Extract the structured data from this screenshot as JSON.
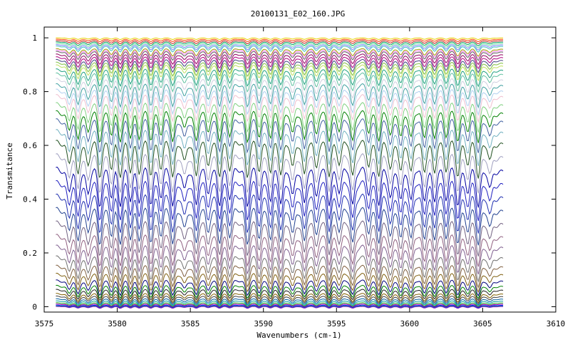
{
  "chart_data": {
    "type": "line",
    "title": "20100131_E02_160.JPG",
    "xlabel": "Wavenumbers (cm-1)",
    "ylabel": "Transmitance",
    "xlim": [
      3575,
      3610
    ],
    "ylim": [
      -0.02,
      1.04
    ],
    "x_ticks": [
      "3575",
      "3580",
      "3585",
      "3590",
      "3595",
      "3600",
      "3605",
      "3610"
    ],
    "y_ticks": [
      "0",
      "0.2",
      "0.4",
      "0.6",
      "0.8",
      "1"
    ],
    "grid": false,
    "legend": "none",
    "x_range_of_data": [
      3575.8,
      3606.4
    ],
    "absorption_lines_cm1": [
      3576.7,
      3577.3,
      3578.0,
      3578.8,
      3579.6,
      3580.2,
      3580.9,
      3581.5,
      3582.3,
      3583.0,
      3583.8,
      3584.6,
      3585.4,
      3586.2,
      3587.0,
      3587.7,
      3588.9,
      3589.7,
      3590.5,
      3591.2,
      3592.0,
      3592.8,
      3593.6,
      3594.5,
      3595.2,
      3596.1,
      3597.2,
      3597.9,
      3598.7,
      3599.4,
      3600.1,
      3601.0,
      3601.7,
      3602.5,
      3603.3,
      3604.0,
      3604.7,
      3605.5
    ],
    "series_baselines": [
      1.0,
      0.995,
      0.99,
      0.985,
      0.98,
      0.975,
      0.97,
      0.96,
      0.955,
      0.95,
      0.94,
      0.93,
      0.92,
      0.91,
      0.9,
      0.885,
      0.87,
      0.85,
      0.83,
      0.81,
      0.79,
      0.76,
      0.73,
      0.7,
      0.66,
      0.62,
      0.57,
      0.52,
      0.47,
      0.42,
      0.37,
      0.32,
      0.27,
      0.23,
      0.19,
      0.155,
      0.125,
      0.1,
      0.08,
      0.065,
      0.05,
      0.04,
      0.03,
      0.022,
      0.015,
      0.01,
      0.006,
      0.003,
      0.001
    ],
    "series_colors": [
      "#e8d000",
      "#ff4000",
      "#c02020",
      "#00a060",
      "#70e0a0",
      "#8080ff",
      "#40c0c0",
      "#a0a000",
      "#ff80ff",
      "#606060",
      "#900060",
      "#b00080",
      "#404080",
      "#80c040",
      "#c0e060",
      "#20a080",
      "#60c0a0",
      "#d0d0e0",
      "#40a0a0",
      "#b0d0f0",
      "#f0c0d0",
      "#80d080",
      "#008000",
      "#4060a0",
      "#70b0c0",
      "#205020",
      "#a0a0c0",
      "#0000a0",
      "#2020c0",
      "#2030b0",
      "#204090",
      "#706080",
      "#906080",
      "#806090",
      "#707070",
      "#806040",
      "#806010",
      "#00007a",
      "#008000",
      "#202020",
      "#806000",
      "#404040",
      "#0060a0",
      "#00a0a0",
      "#20a020",
      "#a000a0",
      "#0000ff",
      "#00c080",
      "#8000c0"
    ]
  }
}
